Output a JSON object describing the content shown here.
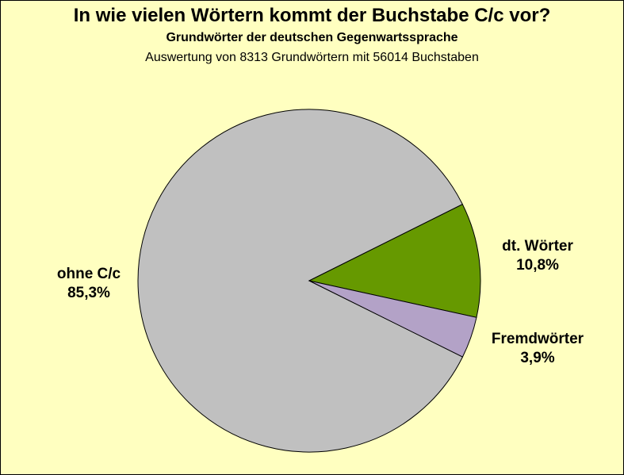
{
  "chart_data": {
    "type": "pie",
    "title": "In wie vielen Wörtern kommt der Buchstabe C/c vor?",
    "subtitle": "Grundwörter der deutschen Gegenwartssprache",
    "subtitle2": "Auswertung von 8313 Grundwörtern mit 56014 Buchstaben",
    "slices": [
      {
        "label": "ohne C/c",
        "value": 85.3,
        "display": "85,3%",
        "color": "#c0c0c0"
      },
      {
        "label": "dt. Wörter",
        "value": 10.8,
        "display": "10,8%",
        "color": "#669900"
      },
      {
        "label": "Fremdwörter",
        "value": 3.9,
        "display": "3,9%",
        "color": "#b3a2c7"
      }
    ]
  }
}
